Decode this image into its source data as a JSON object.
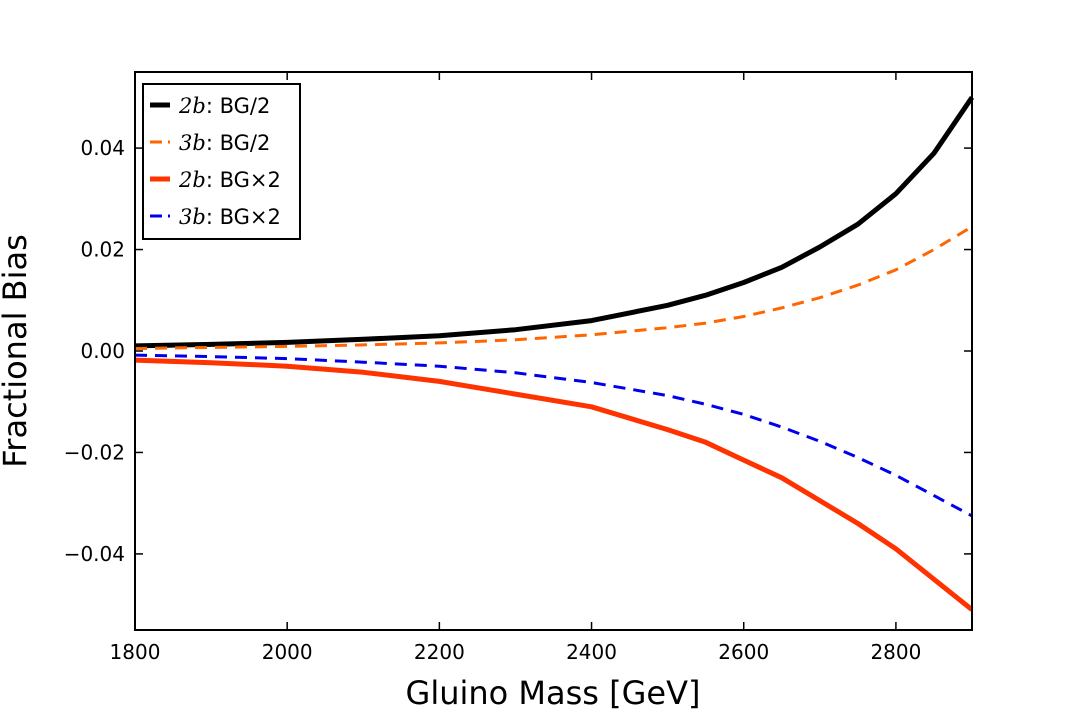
{
  "chart_data": {
    "type": "line",
    "title": "",
    "xlabel": "Gluino Mass [GeV]",
    "ylabel": "Fractional Bias",
    "xlim": [
      1800,
      2900
    ],
    "ylim": [
      -0.055,
      0.055
    ],
    "xticks": [
      1800,
      2000,
      2200,
      2400,
      2600,
      2800
    ],
    "xtick_labels": [
      "1800",
      "2000",
      "2200",
      "2400",
      "2600",
      "2800"
    ],
    "yticks": [
      0.04,
      0.02,
      0.0,
      -0.02,
      -0.04
    ],
    "ytick_labels": [
      "0.04",
      "0.02",
      "0.00",
      "−0.02",
      "−0.04"
    ],
    "grid": false,
    "legend_position": "top-left",
    "x": [
      1800,
      1900,
      2000,
      2100,
      2200,
      2300,
      2400,
      2500,
      2550,
      2600,
      2650,
      2700,
      2750,
      2800,
      2850,
      2900
    ],
    "series": [
      {
        "name": "BG/2",
        "legend_math": "2b",
        "color": "#000000",
        "style": "solid",
        "values": [
          0.001,
          0.0013,
          0.0017,
          0.0023,
          0.003,
          0.0042,
          0.006,
          0.009,
          0.011,
          0.0135,
          0.0165,
          0.0205,
          0.025,
          0.031,
          0.039,
          0.05
        ]
      },
      {
        "name": "BG/2",
        "legend_math": "3b",
        "color": "#ff6600",
        "style": "dashed",
        "values": [
          0.0005,
          0.0007,
          0.0009,
          0.0012,
          0.0016,
          0.0022,
          0.0032,
          0.0046,
          0.0055,
          0.0068,
          0.0085,
          0.0105,
          0.013,
          0.016,
          0.02,
          0.0245
        ]
      },
      {
        "name": "BG×2",
        "legend_math": "2b",
        "color": "#ff3300",
        "style": "solid",
        "values": [
          -0.0018,
          -0.0023,
          -0.003,
          -0.0042,
          -0.006,
          -0.0085,
          -0.011,
          -0.0155,
          -0.018,
          -0.0215,
          -0.025,
          -0.0295,
          -0.034,
          -0.039,
          -0.045,
          -0.051
        ]
      },
      {
        "name": "BG×2",
        "legend_math": "3b",
        "color": "#0000ee",
        "style": "dashed",
        "values": [
          -0.0008,
          -0.0011,
          -0.0015,
          -0.0022,
          -0.003,
          -0.0043,
          -0.0062,
          -0.0088,
          -0.0105,
          -0.0125,
          -0.015,
          -0.0178,
          -0.021,
          -0.0245,
          -0.0285,
          -0.0325
        ]
      }
    ]
  }
}
